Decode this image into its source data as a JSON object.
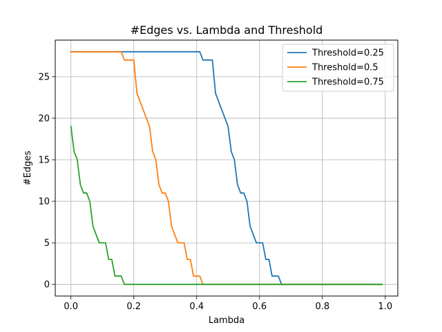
{
  "chart_data": {
    "type": "line",
    "title": "#Edges vs. Lambda and Threshold",
    "xlabel": "Lambda",
    "ylabel": "#Edges",
    "xlim": [
      -0.05,
      1.04
    ],
    "ylim": [
      -1.4,
      29.4
    ],
    "xticks": [
      0.0,
      0.2,
      0.4,
      0.6,
      0.8,
      1.0
    ],
    "xtick_labels": [
      "0.0",
      "0.2",
      "0.4",
      "0.6",
      "0.8",
      "1.0"
    ],
    "yticks": [
      0,
      5,
      10,
      15,
      20,
      25
    ],
    "ytick_labels": [
      "0",
      "5",
      "10",
      "15",
      "20",
      "25"
    ],
    "grid": true,
    "legend_position": "top-right",
    "series": [
      {
        "name": "Threshold=0.25",
        "color": "#1f77b4",
        "x": [
          0.0,
          0.41,
          0.42,
          0.45,
          0.46,
          0.5,
          0.51,
          0.52,
          0.53,
          0.54,
          0.55,
          0.56,
          0.57,
          0.59,
          0.6,
          0.61,
          0.62,
          0.63,
          0.64,
          0.65,
          0.66,
          0.67,
          0.99
        ],
        "y": [
          28,
          28,
          27,
          27,
          23,
          19,
          16,
          15,
          12,
          11,
          11,
          10,
          7,
          5,
          5,
          5,
          3,
          3,
          1,
          1,
          1,
          0,
          0
        ]
      },
      {
        "name": "Threshold=0.5",
        "color": "#ff7f0e",
        "x": [
          0.0,
          0.16,
          0.17,
          0.2,
          0.21,
          0.25,
          0.26,
          0.27,
          0.28,
          0.29,
          0.3,
          0.31,
          0.32,
          0.34,
          0.35,
          0.36,
          0.37,
          0.38,
          0.39,
          0.4,
          0.41,
          0.42,
          0.99
        ],
        "y": [
          28,
          28,
          27,
          27,
          23,
          19,
          16,
          15,
          12,
          11,
          11,
          10,
          7,
          5,
          5,
          5,
          3,
          3,
          1,
          1,
          1,
          0,
          0
        ]
      },
      {
        "name": "Threshold=0.75",
        "color": "#2ca02c",
        "x": [
          0.0,
          0.01,
          0.02,
          0.03,
          0.04,
          0.05,
          0.06,
          0.07,
          0.09,
          0.1,
          0.11,
          0.12,
          0.13,
          0.14,
          0.15,
          0.16,
          0.17,
          0.99
        ],
        "y": [
          19,
          16,
          15,
          12,
          11,
          11,
          10,
          7,
          5,
          5,
          5,
          3,
          3,
          1,
          1,
          1,
          0,
          0
        ]
      }
    ]
  }
}
